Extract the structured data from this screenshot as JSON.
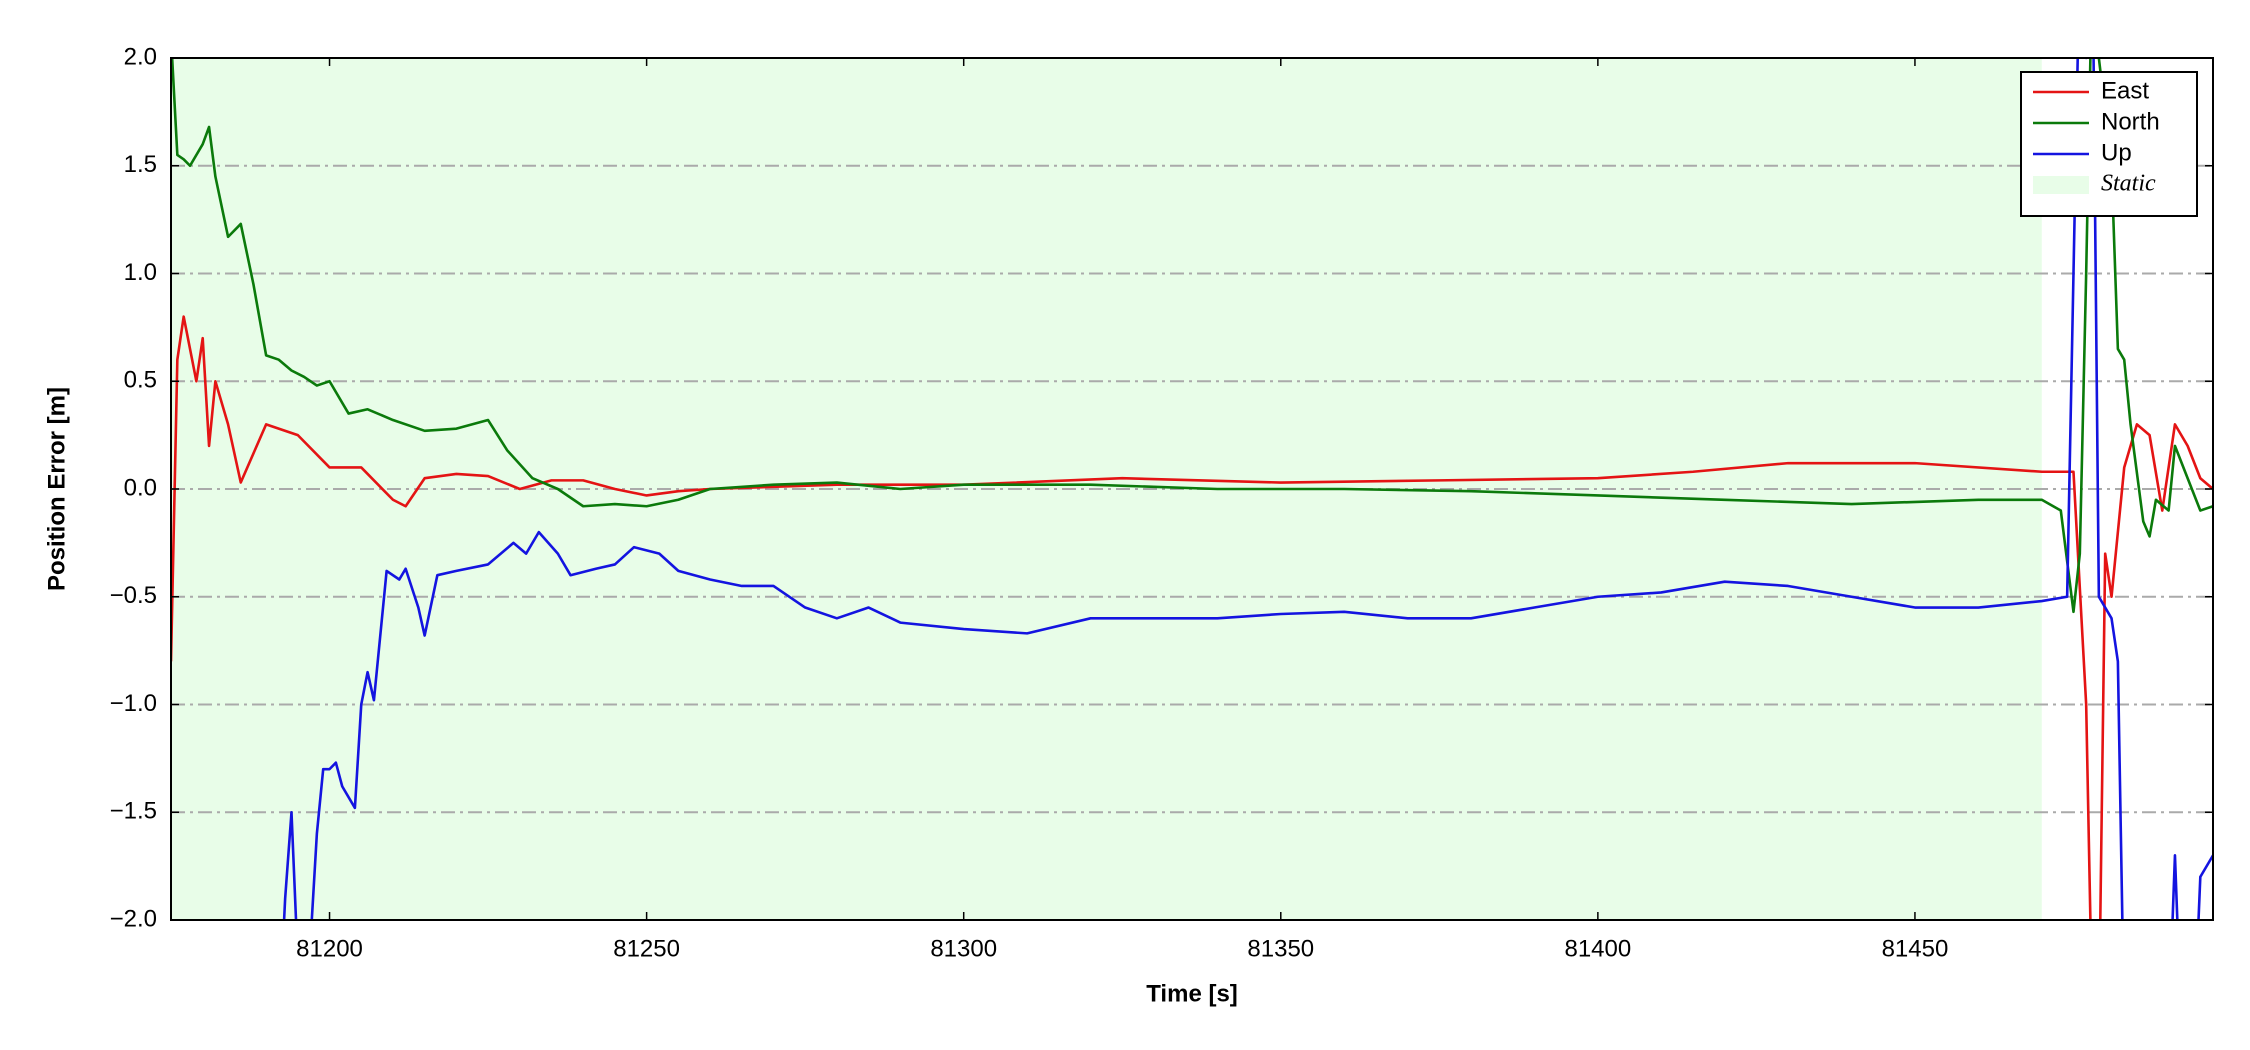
{
  "chart_data": {
    "type": "line",
    "xlabel": "Time [s]",
    "ylabel": "Position Error [m]",
    "xlim": [
      81175,
      81497
    ],
    "ylim": [
      -2,
      2
    ],
    "xticks": [
      81200,
      81250,
      81300,
      81350,
      81400,
      81450
    ],
    "yticks": [
      {
        "value": -2,
        "label": "−2.0"
      },
      {
        "value": -1.5,
        "label": "−1.5"
      },
      {
        "value": -1,
        "label": "−1.0"
      },
      {
        "value": -0.5,
        "label": "−0.5"
      },
      {
        "value": 0,
        "label": "0.0"
      },
      {
        "value": 0.5,
        "label": "0.5"
      },
      {
        "value": 1,
        "label": "1.0"
      },
      {
        "value": 1.5,
        "label": "1.5"
      },
      {
        "value": 2,
        "label": "2.0"
      }
    ],
    "grid": true,
    "legend": "upper right",
    "shade": {
      "label": "Static",
      "xrange": [
        81175,
        81470
      ],
      "color": "#e8fde8"
    },
    "series": [
      {
        "name": "East",
        "color": "#e41414",
        "x": [
          81175,
          81176,
          81177,
          81179,
          81180,
          81181,
          81182,
          81184,
          81186,
          81190,
          81195,
          81200,
          81205,
          81210,
          81212,
          81215,
          81220,
          81225,
          81230,
          81235,
          81240,
          81245,
          81250,
          81255,
          81260,
          81280,
          81300,
          81325,
          81350,
          81375,
          81400,
          81415,
          81430,
          81450,
          81470,
          81475,
          81477,
          81478,
          81479,
          81480,
          81481,
          81483,
          81485,
          81487,
          81489,
          81491,
          81493,
          81495,
          81497
        ],
        "values": [
          -0.8,
          0.6,
          0.8,
          0.5,
          0.7,
          0.2,
          0.5,
          0.3,
          0.03,
          0.3,
          0.25,
          0.1,
          0.1,
          -0.05,
          -0.08,
          0.05,
          0.07,
          0.06,
          0.0,
          0.04,
          0.04,
          0.0,
          -0.03,
          -0.01,
          0.0,
          0.02,
          0.02,
          0.05,
          0.03,
          0.04,
          0.05,
          0.08,
          0.12,
          0.12,
          0.08,
          0.08,
          -1.0,
          -2.5,
          -2.5,
          -0.3,
          -0.5,
          0.1,
          0.3,
          0.25,
          -0.1,
          0.3,
          0.2,
          0.05,
          0.0
        ]
      },
      {
        "name": "North",
        "color": "#0b7a0b",
        "x": [
          81175,
          81176,
          81177,
          81178,
          81180,
          81181,
          81182,
          81184,
          81186,
          81188,
          81190,
          81192,
          81194,
          81196,
          81198,
          81200,
          81203,
          81206,
          81210,
          81215,
          81220,
          81225,
          81228,
          81232,
          81236,
          81240,
          81245,
          81250,
          81255,
          81260,
          81270,
          81280,
          81290,
          81300,
          81320,
          81340,
          81360,
          81380,
          81400,
          81420,
          81440,
          81460,
          81470,
          81473,
          81475,
          81476,
          81477,
          81478,
          81479,
          81481,
          81482,
          81483,
          81484,
          81486,
          81487,
          81488,
          81490,
          81491,
          81493,
          81495,
          81497
        ],
        "values": [
          2.1,
          1.55,
          1.53,
          1.5,
          1.6,
          1.68,
          1.45,
          1.17,
          1.23,
          0.95,
          0.62,
          0.6,
          0.55,
          0.52,
          0.48,
          0.5,
          0.35,
          0.37,
          0.32,
          0.27,
          0.28,
          0.32,
          0.18,
          0.05,
          0.0,
          -0.08,
          -0.07,
          -0.08,
          -0.05,
          0.0,
          0.02,
          0.03,
          0.0,
          0.02,
          0.02,
          0.0,
          0.0,
          -0.01,
          -0.03,
          -0.05,
          -0.07,
          -0.05,
          -0.05,
          -0.1,
          -0.57,
          -0.3,
          1.0,
          2.5,
          2.0,
          1.5,
          0.65,
          0.6,
          0.3,
          -0.15,
          -0.22,
          -0.05,
          -0.1,
          0.2,
          0.05,
          -0.1,
          -0.08
        ]
      },
      {
        "name": "Up",
        "color": "#1414e0",
        "x": [
          81192,
          81193,
          81194,
          81195,
          81197,
          81198,
          81199,
          81200,
          81201,
          81202,
          81204,
          81205,
          81206,
          81207,
          81209,
          81211,
          81212,
          81214,
          81215,
          81217,
          81220,
          81225,
          81229,
          81231,
          81233,
          81236,
          81238,
          81242,
          81245,
          81248,
          81252,
          81255,
          81260,
          81265,
          81270,
          81275,
          81280,
          81285,
          81290,
          81300,
          81310,
          81320,
          81330,
          81340,
          81350,
          81360,
          81370,
          81380,
          81390,
          81400,
          81410,
          81420,
          81430,
          81440,
          81450,
          81460,
          81470,
          81474,
          81475,
          81476,
          81477,
          81478,
          81479,
          81481,
          81482,
          81483,
          81490,
          81491,
          81492,
          81494,
          81495,
          81497
        ],
        "values": [
          -2.5,
          -1.9,
          -1.5,
          -2.2,
          -2.1,
          -1.6,
          -1.3,
          -1.3,
          -1.27,
          -1.38,
          -1.48,
          -1.0,
          -0.85,
          -0.98,
          -0.38,
          -0.42,
          -0.37,
          -0.55,
          -0.68,
          -0.4,
          -0.38,
          -0.35,
          -0.25,
          -0.3,
          -0.2,
          -0.3,
          -0.4,
          -0.37,
          -0.35,
          -0.27,
          -0.3,
          -0.38,
          -0.42,
          -0.45,
          -0.45,
          -0.55,
          -0.6,
          -0.55,
          -0.62,
          -0.65,
          -0.67,
          -0.6,
          -0.6,
          -0.6,
          -0.58,
          -0.57,
          -0.6,
          -0.6,
          -0.55,
          -0.5,
          -0.48,
          -0.43,
          -0.45,
          -0.5,
          -0.55,
          -0.55,
          -0.52,
          -0.5,
          1.0,
          2.5,
          2.0,
          2.5,
          -0.5,
          -0.6,
          -0.8,
          -2.5,
          -2.5,
          -1.7,
          -2.5,
          -2.5,
          -1.8,
          -1.7
        ]
      }
    ]
  }
}
